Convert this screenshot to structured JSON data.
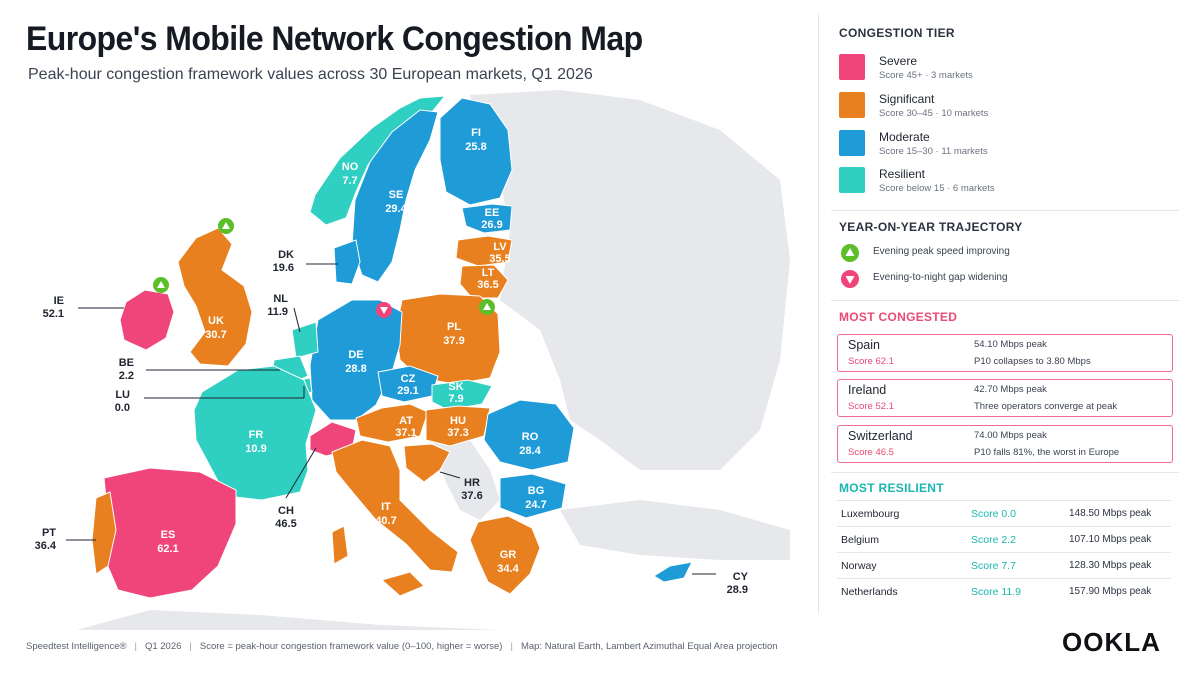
{
  "header": {
    "title": "Europe's Mobile Network Congestion Map",
    "subtitle": "Peak-hour congestion framework values across 30 European markets, Q1 2026"
  },
  "colors": {
    "severe": "#f0457a",
    "significant": "#e8801f",
    "moderate": "#1f9bd8",
    "resilient": "#2fcfc2",
    "land": "#e6e8eb",
    "improving": "#5cbf2a",
    "widening": "#f0457a"
  },
  "map": {
    "countries": [
      {
        "code": "NO",
        "score": "7.7",
        "tier": "resilient"
      },
      {
        "code": "SE",
        "score": "29.4",
        "tier": "moderate"
      },
      {
        "code": "FI",
        "score": "25.8",
        "tier": "moderate"
      },
      {
        "code": "EE",
        "score": "26.9",
        "tier": "moderate"
      },
      {
        "code": "LV",
        "score": "35.5",
        "tier": "significant"
      },
      {
        "code": "LT",
        "score": "36.5",
        "tier": "significant"
      },
      {
        "code": "UK",
        "score": "30.7",
        "tier": "significant"
      },
      {
        "code": "PL",
        "score": "37.9",
        "tier": "significant"
      },
      {
        "code": "DE",
        "score": "28.8",
        "tier": "moderate"
      },
      {
        "code": "CZ",
        "score": "29.1",
        "tier": "moderate"
      },
      {
        "code": "SK",
        "score": "7.9",
        "tier": "resilient"
      },
      {
        "code": "AT",
        "score": "37.1",
        "tier": "significant"
      },
      {
        "code": "HU",
        "score": "37.3",
        "tier": "significant"
      },
      {
        "code": "RO",
        "score": "28.4",
        "tier": "moderate"
      },
      {
        "code": "FR",
        "score": "10.9",
        "tier": "resilient"
      },
      {
        "code": "BG",
        "score": "24.7",
        "tier": "moderate"
      },
      {
        "code": "IT",
        "score": "40.7",
        "tier": "significant"
      },
      {
        "code": "GR",
        "score": "34.4",
        "tier": "significant"
      },
      {
        "code": "ES",
        "score": "62.1",
        "tier": "severe"
      }
    ],
    "callouts": [
      {
        "code": "DK",
        "score": "19.6",
        "tier": "moderate"
      },
      {
        "code": "IE",
        "score": "52.1",
        "tier": "severe"
      },
      {
        "code": "NL",
        "score": "11.9",
        "tier": "resilient"
      },
      {
        "code": "BE",
        "score": "2.2",
        "tier": "resilient"
      },
      {
        "code": "LU",
        "score": "0.0",
        "tier": "resilient"
      },
      {
        "code": "CH",
        "score": "46.5",
        "tier": "severe"
      },
      {
        "code": "HR",
        "score": "37.6",
        "tier": "significant"
      },
      {
        "code": "PT",
        "score": "36.4",
        "tier": "significant"
      },
      {
        "code": "CY",
        "score": "28.9",
        "tier": "moderate"
      }
    ]
  },
  "legend": {
    "title": "CONGESTION TIER",
    "tiers": [
      {
        "key": "severe",
        "name": "Severe",
        "desc": "Score 45+   ·   3 markets"
      },
      {
        "key": "significant",
        "name": "Significant",
        "desc": "Score 30–45   ·   10 markets"
      },
      {
        "key": "moderate",
        "name": "Moderate",
        "desc": "Score 15–30   ·   11 markets"
      },
      {
        "key": "resilient",
        "name": "Resilient",
        "desc": "Score below 15   ·   6 markets"
      }
    ]
  },
  "trajectory": {
    "title": "YEAR-ON-YEAR TRAJECTORY",
    "improving": "Evening peak speed improving",
    "widening": "Evening-to-night gap widening"
  },
  "most_congested": {
    "title": "MOST CONGESTED",
    "items": [
      {
        "country": "Spain",
        "score": "Score 62.1",
        "peak": "54.10 Mbps peak",
        "note": "P10 collapses to 3.80 Mbps"
      },
      {
        "country": "Ireland",
        "score": "Score 52.1",
        "peak": "42.70 Mbps peak",
        "note": "Three operators converge at peak"
      },
      {
        "country": "Switzerland",
        "score": "Score 46.5",
        "peak": "74.00 Mbps peak",
        "note": "P10 falls 81%, the worst in Europe"
      }
    ]
  },
  "most_resilient": {
    "title": "MOST RESILIENT",
    "items": [
      {
        "country": "Luxembourg",
        "score": "Score 0.0",
        "peak": "148.50 Mbps peak"
      },
      {
        "country": "Belgium",
        "score": "Score 2.2",
        "peak": "107.10 Mbps peak"
      },
      {
        "country": "Norway",
        "score": "Score 7.7",
        "peak": "128.30 Mbps peak"
      },
      {
        "country": "Netherlands",
        "score": "Score 11.9",
        "peak": "157.90 Mbps peak"
      }
    ]
  },
  "footer": {
    "source": "Speedtest Intelligence®",
    "period": "Q1 2026",
    "score_def": "Score = peak-hour congestion framework value (0–100, higher = worse)",
    "map_note": "Map: Natural Earth, Lambert Azimuthal Equal Area projection"
  },
  "brand": {
    "logo": "OOKLA"
  }
}
